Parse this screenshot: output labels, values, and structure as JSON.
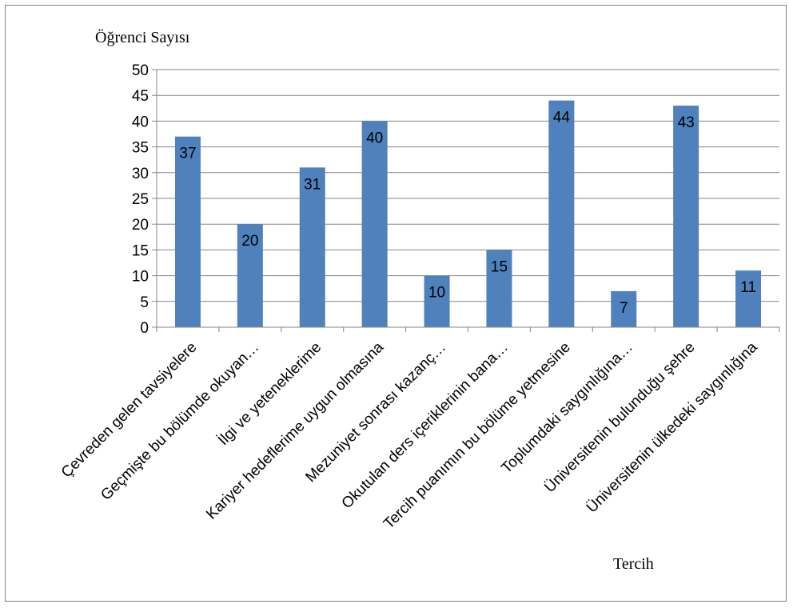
{
  "chart_data": {
    "type": "bar",
    "ylabel": "Öğrenci Sayısı",
    "xlabel": "Tercih",
    "ylim": [
      0,
      50
    ],
    "yticks": [
      0,
      5,
      10,
      15,
      20,
      25,
      30,
      35,
      40,
      45,
      50
    ],
    "grid": true,
    "legend": "none",
    "bar_color": "#4f81bd",
    "categories": [
      "Çevreden gelen tavsiyelere",
      "Geçmişte bu bölümde okuyan…",
      "İlgi ve yeteneklerime",
      "Kariyer hedeflerime uygun olmasına",
      "Mezuniyet sonrası kazanç…",
      "Okutulan ders içeriklerinin bana…",
      "Tercih puanımın bu bölüme yetmesine",
      "Toplumdaki saygınlığına…",
      "Üniversitenin bulunduğu şehre",
      "Üniversitenin ülkedeki saygınlığına"
    ],
    "values": [
      37,
      20,
      31,
      40,
      10,
      15,
      44,
      7,
      43,
      11
    ]
  }
}
